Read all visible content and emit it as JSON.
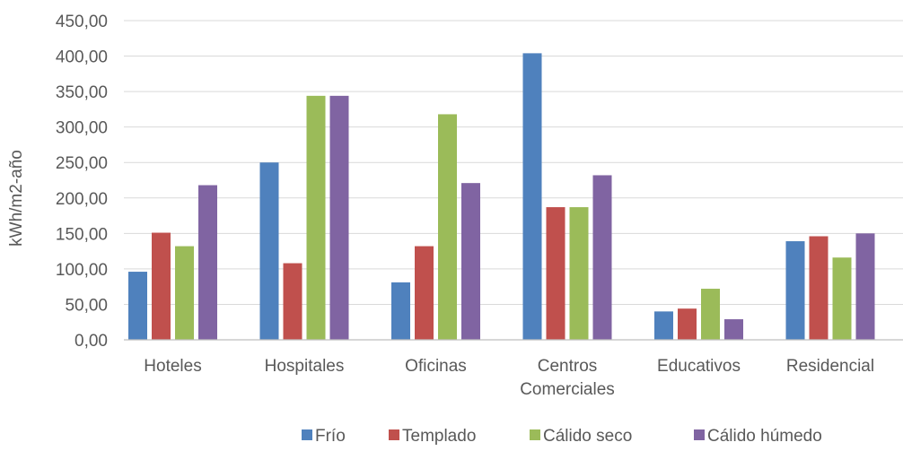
{
  "chart_data": {
    "type": "bar",
    "title": "",
    "xlabel": "",
    "ylabel": "kWh/m2-año",
    "ylim": [
      0,
      450
    ],
    "ytick_step": 50,
    "ytick_labels": [
      "0,00",
      "50,00",
      "100,00",
      "150,00",
      "200,00",
      "250,00",
      "300,00",
      "350,00",
      "400,00",
      "450,00"
    ],
    "grid": true,
    "legend_position": "bottom",
    "categories": [
      [
        "Hoteles"
      ],
      [
        "Hospitales"
      ],
      [
        "Oficinas"
      ],
      [
        "Centros",
        "Comerciales"
      ],
      [
        "Educativos"
      ],
      [
        "Residencial"
      ]
    ],
    "series": [
      {
        "name": "Frío",
        "color": "#4f81bd",
        "values": [
          96,
          250,
          81,
          404,
          40,
          139
        ]
      },
      {
        "name": "Templado",
        "color": "#c0504d",
        "values": [
          151,
          108,
          132,
          187,
          44,
          146
        ]
      },
      {
        "name": "Cálido seco",
        "color": "#9bbb59",
        "values": [
          132,
          344,
          318,
          187,
          72,
          116
        ]
      },
      {
        "name": "Cálido húmedo",
        "color": "#8064a2",
        "values": [
          218,
          344,
          221,
          232,
          29,
          150
        ]
      }
    ]
  }
}
